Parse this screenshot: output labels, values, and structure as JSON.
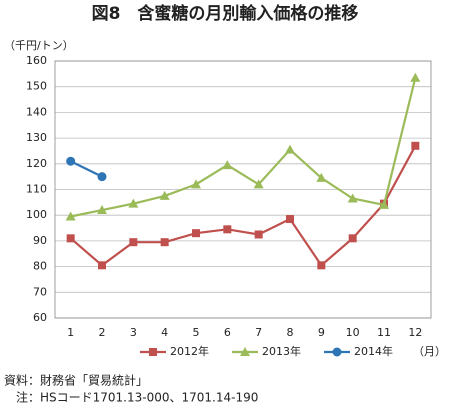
{
  "chart_data": {
    "type": "line",
    "title": "図8　含蜜糖の月別輸入価格の推移",
    "y_label": "（千円/トン）",
    "x_label": "（月）",
    "source": "資料：財務省「貿易統計」",
    "note": "注：HSコード1701.13-000、1701.14-190",
    "categories": [
      "1",
      "2",
      "3",
      "4",
      "5",
      "6",
      "7",
      "8",
      "9",
      "10",
      "11",
      "12"
    ],
    "series": [
      {
        "name": "2012年",
        "color": "#c0504d",
        "marker": "square",
        "values": [
          91,
          80.5,
          89.5,
          89.5,
          93,
          94.5,
          92.5,
          98.5,
          80.5,
          91,
          104.5,
          127
        ]
      },
      {
        "name": "2013年",
        "color": "#9bbb59",
        "marker": "triangle",
        "values": [
          99.5,
          102,
          104.5,
          107.5,
          112,
          119.5,
          112,
          125.5,
          114.5,
          106.5,
          104,
          153.5
        ]
      },
      {
        "name": "2014年",
        "color": "#2e75b6",
        "marker": "circle",
        "values": [
          121,
          115,
          null,
          null,
          null,
          null,
          null,
          null,
          null,
          null,
          null,
          null
        ]
      }
    ],
    "ylim": [
      60,
      160
    ],
    "yticks": [
      60,
      70,
      80,
      90,
      100,
      110,
      120,
      130,
      140,
      150,
      160
    ],
    "grid": true,
    "legend": "bottom"
  }
}
